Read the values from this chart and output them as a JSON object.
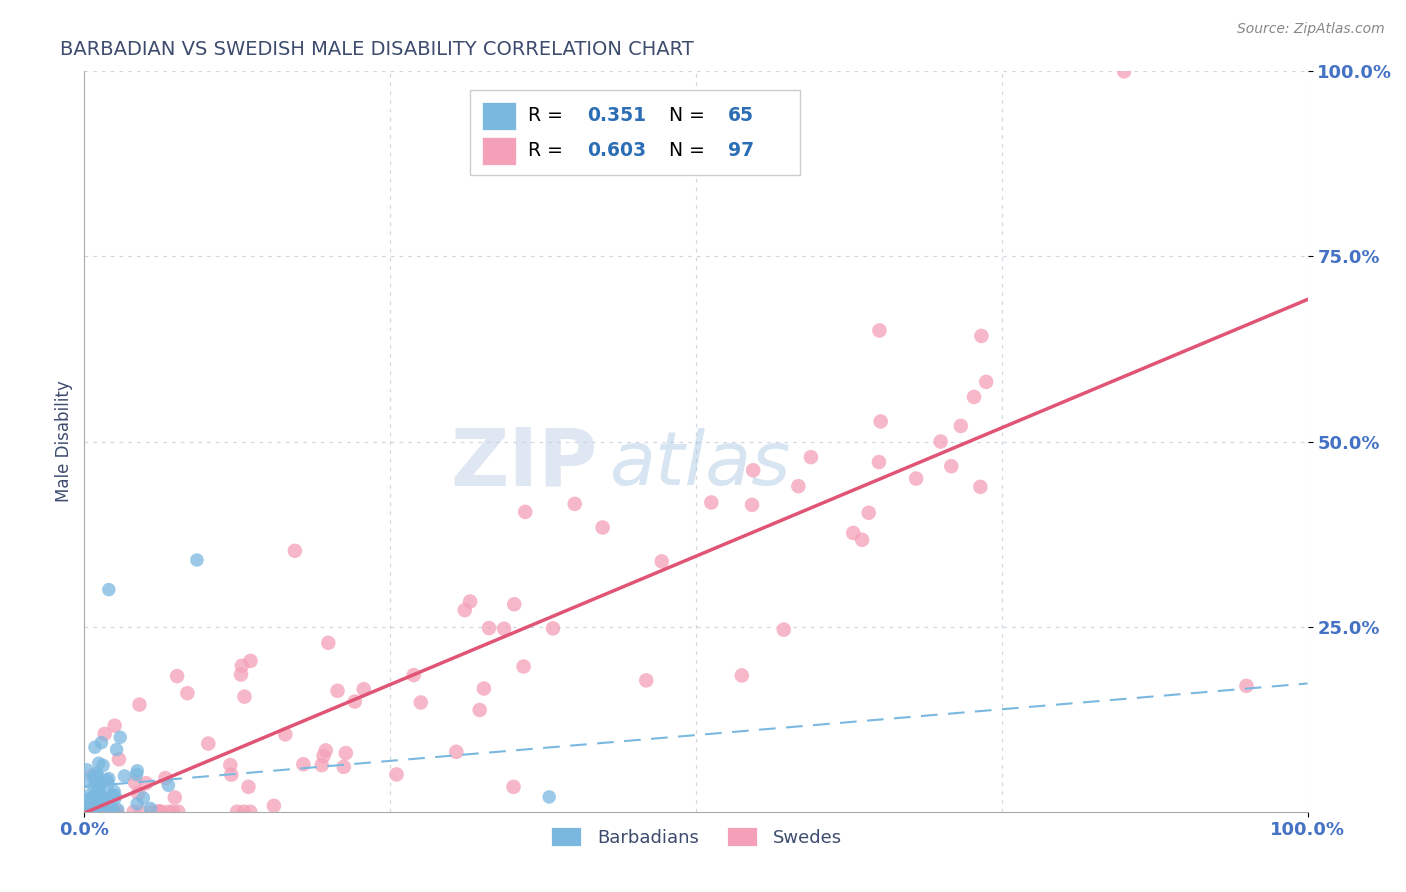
{
  "title": "BARBADIAN VS SWEDISH MALE DISABILITY CORRELATION CHART",
  "source_text": "Source: ZipAtlas.com",
  "ylabel": "Male Disability",
  "xlim": [
    0,
    1.0
  ],
  "ylim": [
    0,
    1.0
  ],
  "grid_lines": [
    0.25,
    0.5,
    0.75,
    1.0
  ],
  "barbadian_color": "#7ab8e0",
  "swedish_color": "#f4a0b8",
  "barbadian_line_color": "#7ab8e0",
  "swedish_line_color": "#e05575",
  "barbadian_R": 0.351,
  "barbadian_N": 65,
  "swedish_R": 0.603,
  "swedish_N": 97,
  "title_color": "#3d4b6e",
  "axis_label_color": "#3d4b6e",
  "tick_color": "#4472c4",
  "legend_R_color": "#2c6eb5",
  "legend_N_color": "#2c6eb5",
  "watermark_zip_color": "#c8d8ee",
  "watermark_atlas_color": "#c8d8ee"
}
